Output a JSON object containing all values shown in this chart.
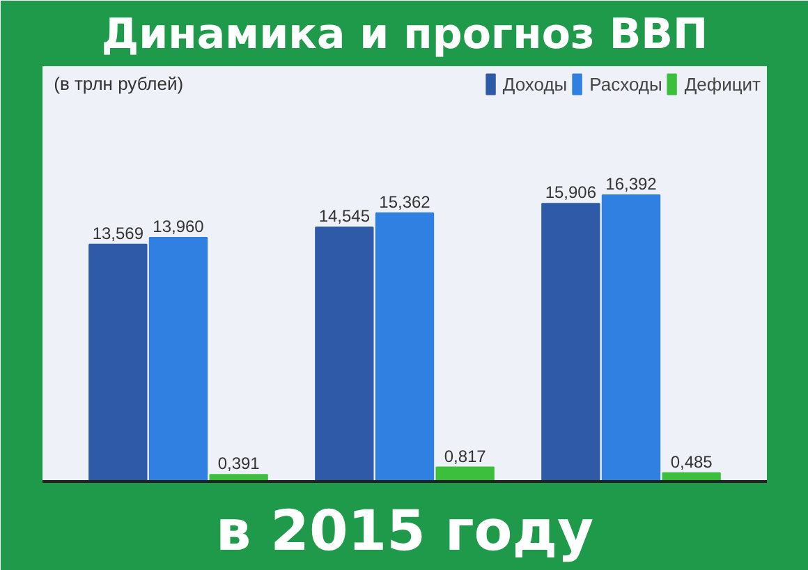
{
  "chart_data": {
    "type": "bar",
    "title": "Динамика и прогноз ВВП",
    "subtitle": "в 2015 году",
    "annotations": [
      "(в трлн рублей)"
    ],
    "categories": [
      null,
      null,
      null
    ],
    "series": [
      {
        "name": "Доходы",
        "color": "#2e5aa8",
        "values": [
          13.569,
          14.545,
          15.906
        ],
        "value_labels": [
          "13,569",
          "14,545",
          "15,906"
        ]
      },
      {
        "name": "Расходы",
        "color": "#2f80e0",
        "values": [
          13.96,
          15.362,
          16.392
        ],
        "value_labels": [
          "13,960",
          "15,362",
          "16,392"
        ]
      },
      {
        "name": "Дефицит",
        "color": "#3cbf3c",
        "values": [
          0.391,
          0.817,
          0.485
        ],
        "value_labels": [
          "0,391",
          "0,817",
          "0,485"
        ]
      }
    ],
    "legend": "top right"
  }
}
